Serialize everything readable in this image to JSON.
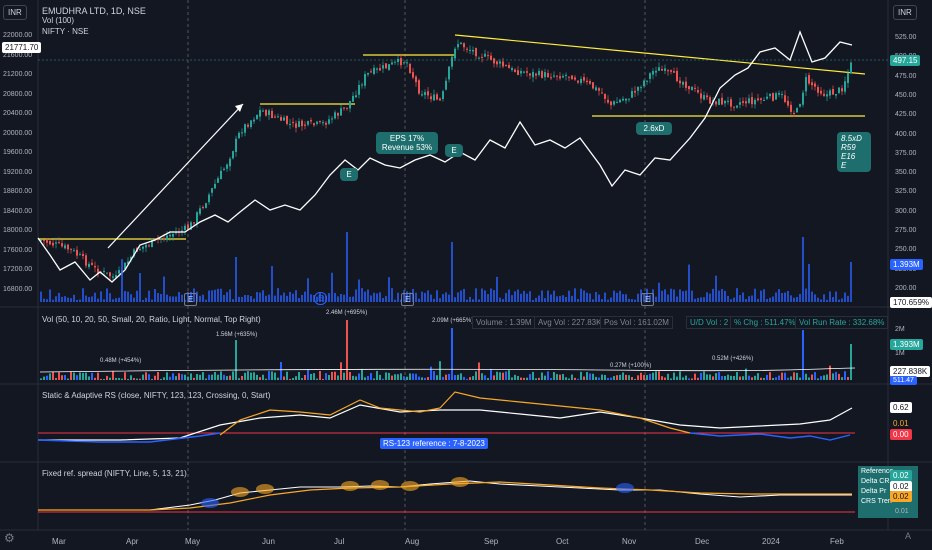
{
  "header": {
    "currency_left": "INR",
    "currency_right": "INR",
    "title": "EMUDHRA LTD, 1D, NSE",
    "volume_label": "Vol (100)",
    "compare_label": "NIFTY · NSE"
  },
  "left_axis": {
    "ticks": [
      "22000.00",
      "21600.00",
      "21200.00",
      "20800.00",
      "20400.00",
      "20000.00",
      "19600.00",
      "19200.00",
      "18800.00",
      "18400.00",
      "18000.00",
      "17600.00",
      "17200.00",
      "16800.00"
    ],
    "current": "21771.70"
  },
  "right_axis": {
    "ticks": [
      "525.00",
      "500.00",
      "475.00",
      "450.00",
      "425.00",
      "400.00",
      "375.00",
      "350.00",
      "325.00",
      "300.00",
      "275.00",
      "250.00",
      "225.00",
      "200.00"
    ],
    "current_price": "497.15",
    "volume_tag": "1.393M",
    "pct_tag": "170.659%"
  },
  "x_axis": [
    "Mar",
    "Apr",
    "May",
    "Jun",
    "Jul",
    "Aug",
    "Sep",
    "Oct",
    "Nov",
    "Dec",
    "2024",
    "Feb"
  ],
  "earnings_markers": [
    "E",
    "E",
    "E",
    "E"
  ],
  "callouts": {
    "c1": "E",
    "c2_l1": "EPS 17%",
    "c2_l2": "Revenue 53%",
    "c3": "E",
    "c4": "2.6xD",
    "c5_l1": "8.5xD",
    "c5_l2": "R59",
    "c5_l3": "E16",
    "c5_l4": "E"
  },
  "vol_pane": {
    "title": "Vol (50, 10, 20, 50, Small, 20, Ratio, Light, Normal, Top Right)",
    "annotations": [
      "0.48M (+454%)",
      "1.56M (+635%)",
      "2.46M (+695%)",
      "2.09M (+665%)",
      "0.27M (+100%)",
      "0.52M (+426%)"
    ],
    "stats": [
      "Volume : 1.39M",
      "Avg Vol : 227.83K",
      "Pos Vol : 161.02M",
      "U/D Vol : 2",
      "% Chg : 511.47%",
      "Vol Run Rate : 332.68%"
    ],
    "ticks": [
      "2M",
      "1M"
    ],
    "tag_vol": "1.393M",
    "tag_avg": "227.838K",
    "tag_chg": "511.47"
  },
  "rs_pane": {
    "title": "Static & Adaptive RS (close, NIFTY, 123, 123, Crossing, 0, Start)",
    "reference_label": "RS-123 reference : 7-8-2023",
    "tags": [
      "0.62",
      "0.01",
      "0.00"
    ]
  },
  "spread_pane": {
    "title": "Fixed ref. spread (NIFTY, Line, 5, 13, 21)",
    "tags": [
      "0.02",
      "0.02",
      "0.02",
      "0.01"
    ],
    "legend": [
      "Reference",
      "Delta CR",
      "Delta Pr",
      "CRS Tren"
    ]
  },
  "colors": {
    "bg": "#131722",
    "up": "#26a69a",
    "down": "#ef5350",
    "nifty": "#ffffff",
    "yellow": "#ffeb3b",
    "vol_up": "#2962ff",
    "rs_orange": "#f9a825",
    "red_line": "#f23645"
  }
}
